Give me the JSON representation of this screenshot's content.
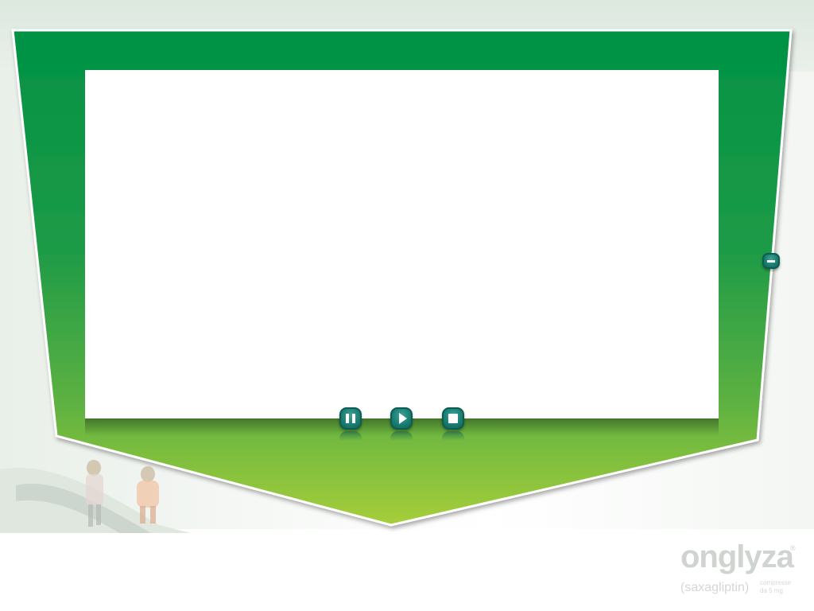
{
  "player": {
    "controls": {
      "pause": "pause",
      "play": "play",
      "stop": "stop"
    },
    "window_control": "minimize"
  },
  "brand": {
    "name": "onglyza",
    "registered_mark": "®",
    "generic_name": "(saxagliptin)",
    "form_line1": "compresse",
    "form_line2": "da 5 mg"
  },
  "colors": {
    "frame_top": "#009245",
    "frame_bottom": "#a6ce39",
    "button": "#1c7f73",
    "logo": "#d0d4d0"
  }
}
